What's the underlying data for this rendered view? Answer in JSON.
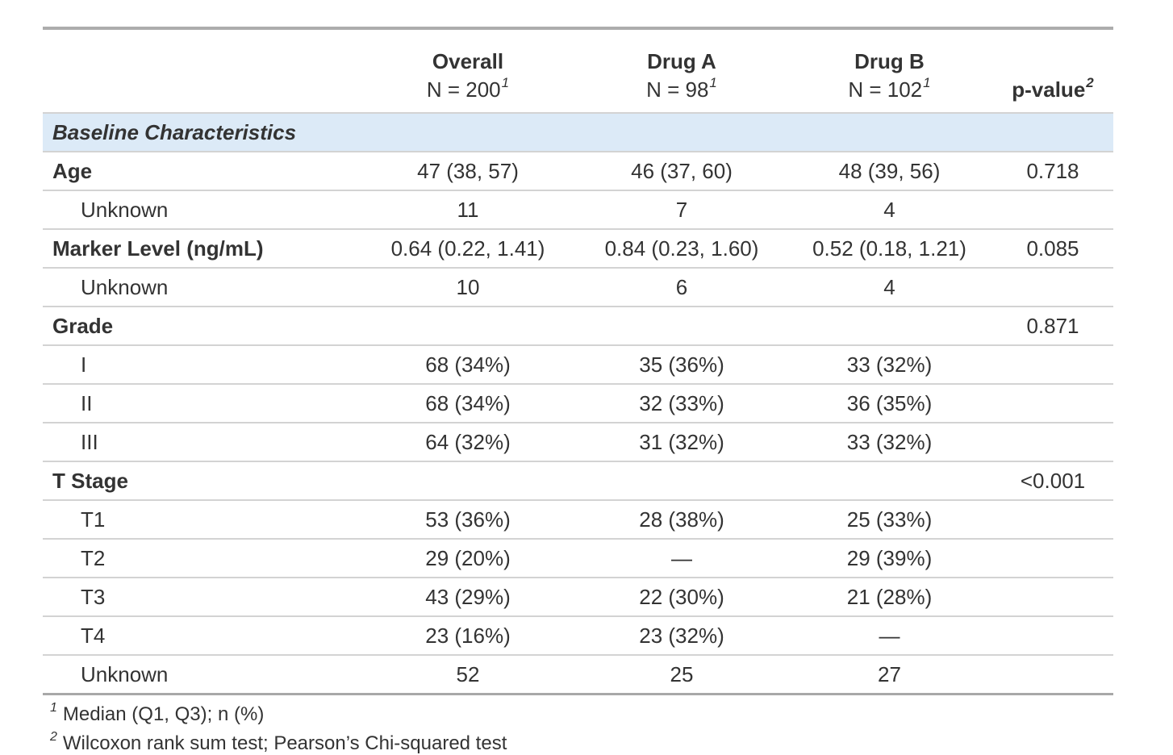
{
  "table": {
    "columns": [
      {
        "label": ""
      },
      {
        "label": "Overall",
        "sublabel": "N = 200",
        "footnote_mark": "1"
      },
      {
        "label": "Drug A",
        "sublabel": "N = 98",
        "footnote_mark": "1"
      },
      {
        "label": "Drug B",
        "sublabel": "N = 102",
        "footnote_mark": "1"
      },
      {
        "label": "p-value",
        "footnote_mark": "2"
      }
    ],
    "group_header": "Baseline Characteristics",
    "rows": [
      {
        "label": "Age",
        "bold": true,
        "indent": false,
        "overall": "47 (38, 57)",
        "drug_a": "46 (37, 60)",
        "drug_b": "48 (39, 56)",
        "p_value": "0.718"
      },
      {
        "label": "Unknown",
        "bold": false,
        "indent": true,
        "overall": "11",
        "drug_a": "7",
        "drug_b": "4",
        "p_value": ""
      },
      {
        "label": "Marker Level (ng/mL)",
        "bold": true,
        "indent": false,
        "overall": "0.64 (0.22, 1.41)",
        "drug_a": "0.84 (0.23, 1.60)",
        "drug_b": "0.52 (0.18, 1.21)",
        "p_value": "0.085"
      },
      {
        "label": "Unknown",
        "bold": false,
        "indent": true,
        "overall": "10",
        "drug_a": "6",
        "drug_b": "4",
        "p_value": ""
      },
      {
        "label": "Grade",
        "bold": true,
        "indent": false,
        "overall": "",
        "drug_a": "",
        "drug_b": "",
        "p_value": "0.871"
      },
      {
        "label": "I",
        "bold": false,
        "indent": true,
        "overall": "68 (34%)",
        "drug_a": "35 (36%)",
        "drug_b": "33 (32%)",
        "p_value": ""
      },
      {
        "label": "II",
        "bold": false,
        "indent": true,
        "overall": "68 (34%)",
        "drug_a": "32 (33%)",
        "drug_b": "36 (35%)",
        "p_value": ""
      },
      {
        "label": "III",
        "bold": false,
        "indent": true,
        "overall": "64 (32%)",
        "drug_a": "31 (32%)",
        "drug_b": "33 (32%)",
        "p_value": ""
      },
      {
        "label": "T Stage",
        "bold": true,
        "indent": false,
        "overall": "",
        "drug_a": "",
        "drug_b": "",
        "p_value": "<0.001"
      },
      {
        "label": "T1",
        "bold": false,
        "indent": true,
        "overall": "53 (36%)",
        "drug_a": "28 (38%)",
        "drug_b": "25 (33%)",
        "p_value": ""
      },
      {
        "label": "T2",
        "bold": false,
        "indent": true,
        "overall": "29 (20%)",
        "drug_a": "—",
        "drug_b": "29 (39%)",
        "p_value": ""
      },
      {
        "label": "T3",
        "bold": false,
        "indent": true,
        "overall": "43 (29%)",
        "drug_a": "22 (30%)",
        "drug_b": "21 (28%)",
        "p_value": ""
      },
      {
        "label": "T4",
        "bold": false,
        "indent": true,
        "overall": "23 (16%)",
        "drug_a": "23 (32%)",
        "drug_b": "—",
        "p_value": ""
      },
      {
        "label": "Unknown",
        "bold": false,
        "indent": true,
        "overall": "52",
        "drug_a": "25",
        "drug_b": "27",
        "p_value": ""
      }
    ],
    "footnotes": [
      {
        "mark": "1",
        "text": "Median (Q1, Q3); n (%)"
      },
      {
        "mark": "2",
        "text": "Wilcoxon rank sum test; Pearson’s Chi-squared test"
      }
    ],
    "colors": {
      "group_row_bg": "#DCEAF7",
      "text": "#333333",
      "outer_border": "#A8A8A8",
      "row_line": "#D3D3D3"
    }
  }
}
